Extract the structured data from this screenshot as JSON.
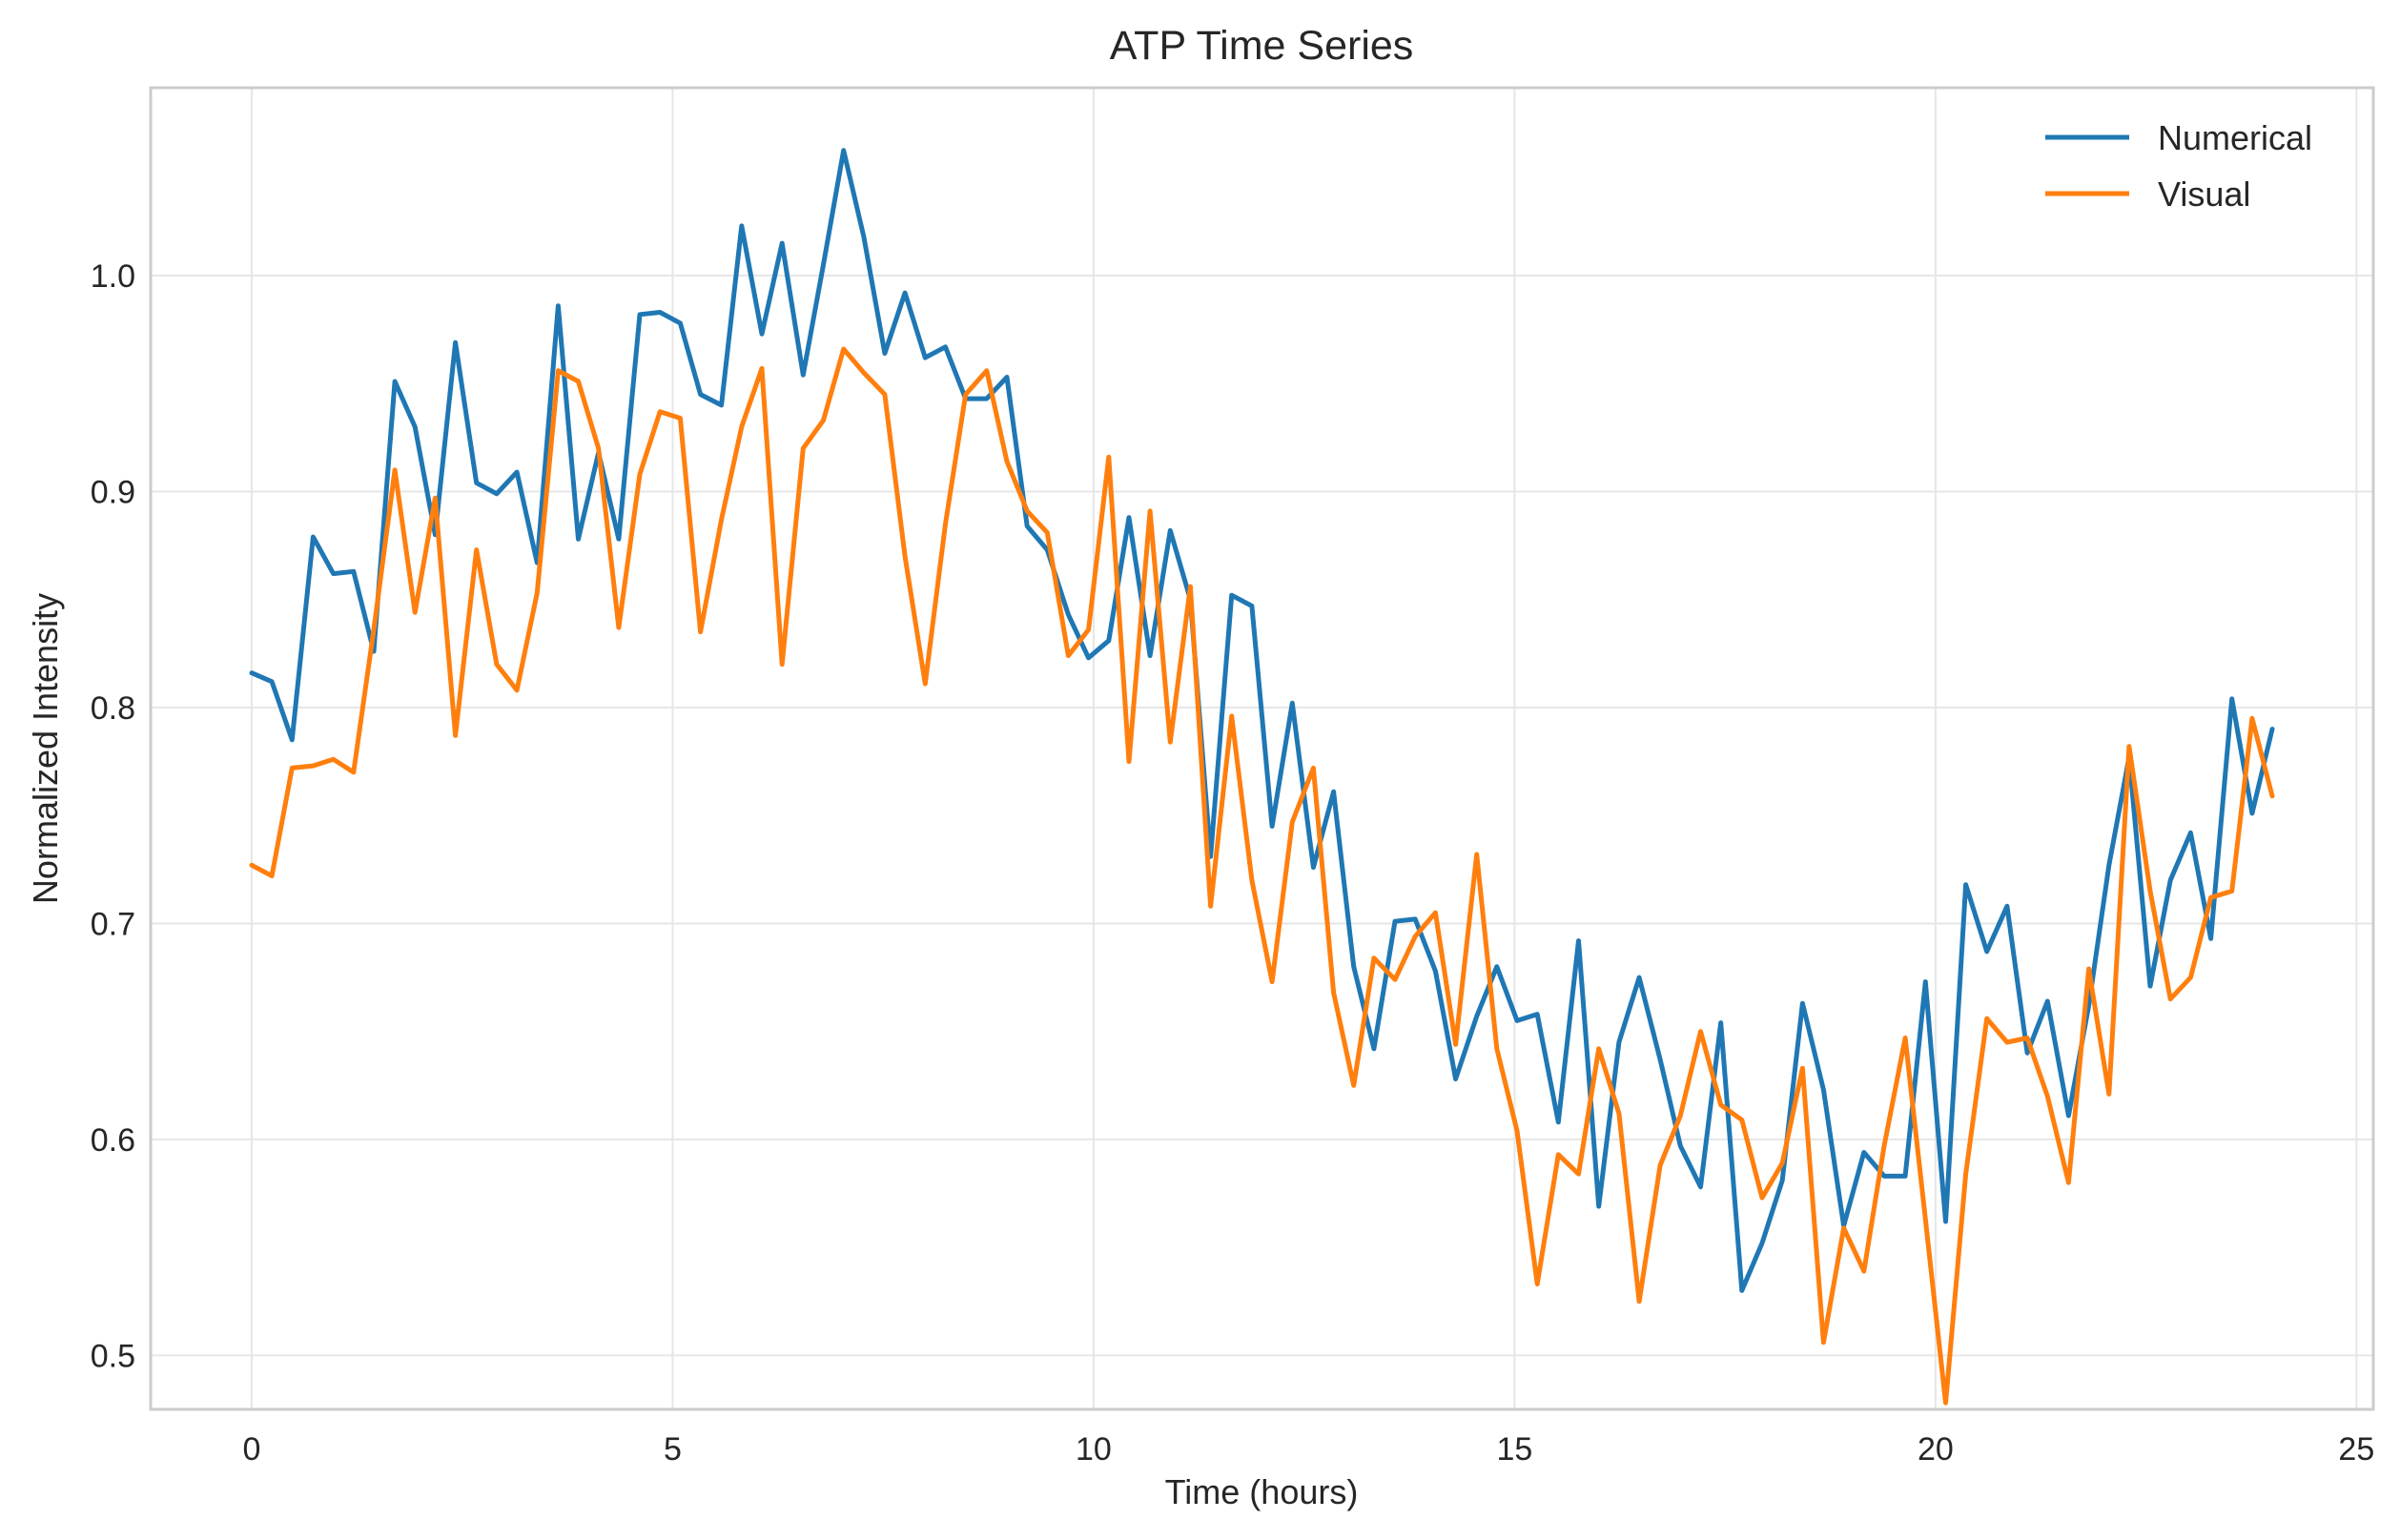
{
  "chart_data": {
    "type": "line",
    "title": "ATP Time Series",
    "xlabel": "Time (hours)",
    "ylabel": "Normalized Intensity",
    "xlim": [
      -1.2,
      25.2
    ],
    "ylim": [
      0.475,
      1.087
    ],
    "xticks": [
      0,
      5,
      10,
      15,
      20,
      25
    ],
    "xtick_labels": [
      "0",
      "5",
      "10",
      "15",
      "20",
      "25"
    ],
    "yticks": [
      0.5,
      0.6,
      0.7,
      0.8,
      0.9,
      1.0
    ],
    "ytick_labels": [
      "0.5",
      "0.6",
      "0.7",
      "0.8",
      "0.9",
      "1.0"
    ],
    "grid": true,
    "legend_position": "top-right",
    "x": [
      0.0,
      0.24,
      0.48,
      0.73,
      0.97,
      1.21,
      1.45,
      1.7,
      1.94,
      2.18,
      2.42,
      2.67,
      2.91,
      3.15,
      3.39,
      3.64,
      3.88,
      4.12,
      4.36,
      4.61,
      4.85,
      5.09,
      5.33,
      5.58,
      5.82,
      6.06,
      6.3,
      6.55,
      6.79,
      7.03,
      7.27,
      7.52,
      7.76,
      8.0,
      8.24,
      8.48,
      8.73,
      8.97,
      9.21,
      9.45,
      9.7,
      9.94,
      10.18,
      10.42,
      10.67,
      10.91,
      11.15,
      11.39,
      11.64,
      11.88,
      12.12,
      12.36,
      12.61,
      12.85,
      13.09,
      13.33,
      13.58,
      13.82,
      14.06,
      14.3,
      14.55,
      14.79,
      15.03,
      15.27,
      15.52,
      15.76,
      16.0,
      16.24,
      16.48,
      16.73,
      16.97,
      17.21,
      17.45,
      17.7,
      17.94,
      18.18,
      18.42,
      18.67,
      18.91,
      19.15,
      19.39,
      19.64,
      19.88,
      20.12,
      20.36,
      20.61,
      20.85,
      21.09,
      21.33,
      21.58,
      21.82,
      22.06,
      22.3,
      22.55,
      22.79,
      23.03,
      23.27,
      23.52,
      23.76,
      24.0
    ],
    "series": [
      {
        "name": "Numerical",
        "color": "#1f77b4",
        "values": [
          0.816,
          0.812,
          0.785,
          0.879,
          0.862,
          0.863,
          0.826,
          0.951,
          0.93,
          0.88,
          0.969,
          0.904,
          0.899,
          0.909,
          0.867,
          0.986,
          0.878,
          0.918,
          0.878,
          0.982,
          0.983,
          0.978,
          0.945,
          0.94,
          1.023,
          0.973,
          1.015,
          0.954,
          1.005,
          1.058,
          1.018,
          0.964,
          0.992,
          0.962,
          0.967,
          0.943,
          0.943,
          0.953,
          0.884,
          0.873,
          0.843,
          0.823,
          0.831,
          0.888,
          0.824,
          0.882,
          0.85,
          0.731,
          0.852,
          0.847,
          0.745,
          0.802,
          0.726,
          0.761,
          0.68,
          0.642,
          0.701,
          0.702,
          0.678,
          0.628,
          0.657,
          0.68,
          0.655,
          0.658,
          0.608,
          0.692,
          0.569,
          0.645,
          0.675,
          0.637,
          0.597,
          0.578,
          0.654,
          0.53,
          0.552,
          0.581,
          0.663,
          0.623,
          0.56,
          0.594,
          0.583,
          0.583,
          0.673,
          0.562,
          0.718,
          0.687,
          0.708,
          0.64,
          0.664,
          0.611,
          0.662,
          0.727,
          0.777,
          0.671,
          0.72,
          0.742,
          0.693,
          0.804,
          0.751,
          0.79
        ]
      },
      {
        "name": "Visual",
        "color": "#ff7f0e",
        "values": [
          0.727,
          0.722,
          0.772,
          0.773,
          0.776,
          0.77,
          0.836,
          0.91,
          0.844,
          0.897,
          0.787,
          0.873,
          0.82,
          0.808,
          0.853,
          0.956,
          0.951,
          0.92,
          0.837,
          0.908,
          0.937,
          0.934,
          0.835,
          0.887,
          0.93,
          0.957,
          0.82,
          0.92,
          0.933,
          0.966,
          0.955,
          0.945,
          0.87,
          0.811,
          0.885,
          0.945,
          0.956,
          0.914,
          0.891,
          0.881,
          0.824,
          0.836,
          0.916,
          0.775,
          0.891,
          0.784,
          0.856,
          0.708,
          0.796,
          0.72,
          0.673,
          0.747,
          0.772,
          0.668,
          0.625,
          0.684,
          0.674,
          0.694,
          0.705,
          0.644,
          0.732,
          0.642,
          0.604,
          0.533,
          0.593,
          0.584,
          0.642,
          0.612,
          0.525,
          0.588,
          0.611,
          0.65,
          0.616,
          0.609,
          0.573,
          0.589,
          0.633,
          0.506,
          0.559,
          0.539,
          0.597,
          0.647,
          0.563,
          0.478,
          0.584,
          0.656,
          0.645,
          0.647,
          0.62,
          0.58,
          0.679,
          0.621,
          0.782,
          0.715,
          0.665,
          0.675,
          0.712,
          0.715,
          0.795,
          0.759
        ]
      }
    ]
  }
}
